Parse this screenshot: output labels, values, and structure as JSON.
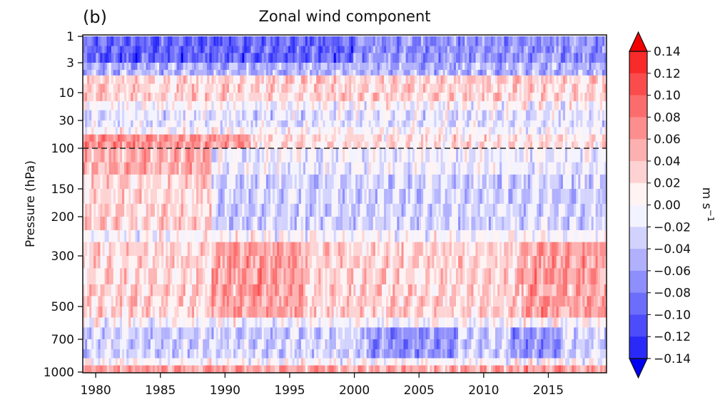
{
  "panel_label": "(b)",
  "chart_data": {
    "type": "heatmap",
    "title": "Zonal wind component",
    "xlabel": "",
    "ylabel": "Pressure (hPa)",
    "x_ticks": [
      "1980",
      "1985",
      "1990",
      "1995",
      "2000",
      "2005",
      "2010",
      "2015"
    ],
    "x_tick_values": [
      1980,
      1985,
      1990,
      1995,
      2000,
      2005,
      2010,
      2015
    ],
    "xlim": [
      1979,
      2019.5
    ],
    "y_ticks": [
      "1",
      "3",
      "10",
      "30",
      "100",
      "150",
      "200",
      "300",
      "500",
      "700",
      "1000"
    ],
    "y_tick_values": [
      1,
      3,
      10,
      30,
      100,
      150,
      200,
      300,
      500,
      700,
      1000
    ],
    "ylim": [
      1000,
      1
    ],
    "y_scale": "log (pressure)",
    "reference_line": {
      "pressure": 100,
      "style": "dashed",
      "color": "#222222"
    },
    "colorbar": {
      "label": "m s",
      "label_exponent": "−1",
      "ticks": [
        "0.14",
        "0.12",
        "0.10",
        "0.08",
        "0.06",
        "0.04",
        "0.02",
        "0.00",
        "−0.02",
        "−0.04",
        "−0.06",
        "−0.08",
        "−0.10",
        "−0.12",
        "−0.14"
      ],
      "range": [
        -0.14,
        0.14
      ],
      "step": 0.02,
      "extend": "both",
      "colormap": "bwr",
      "colors_high_to_low": [
        "#f00000",
        "#f82a2a",
        "#fa4c4c",
        "#fb6d6d",
        "#fc8e8e",
        "#fdb0b0",
        "#fed2d2",
        "#fff3f3",
        "#f3f3ff",
        "#d2d2fe",
        "#b0b0fd",
        "#8e8efc",
        "#6d6dfb",
        "#4c4cfa",
        "#2a2af8",
        "#0000f0"
      ]
    },
    "pattern_description_levels": [
      {
        "pressure_range": [
          1,
          3
        ],
        "typical_value": -0.1
      },
      {
        "pressure_range": [
          5,
          15
        ],
        "typical_value": 0.03
      },
      {
        "pressure_range": [
          20,
          40
        ],
        "typical_value": -0.02
      },
      {
        "pressure_range": [
          50,
          100
        ],
        "typical_value": 0.06
      },
      {
        "pressure_range": [
          130,
          220
        ],
        "typical_value": -0.02
      },
      {
        "pressure_range": [
          250,
          550
        ],
        "typical_value": 0.04
      },
      {
        "pressure_range": [
          600,
          850
        ],
        "typical_value": -0.04
      },
      {
        "pressure_range": [
          900,
          1000
        ],
        "typical_value": 0.06
      }
    ]
  }
}
